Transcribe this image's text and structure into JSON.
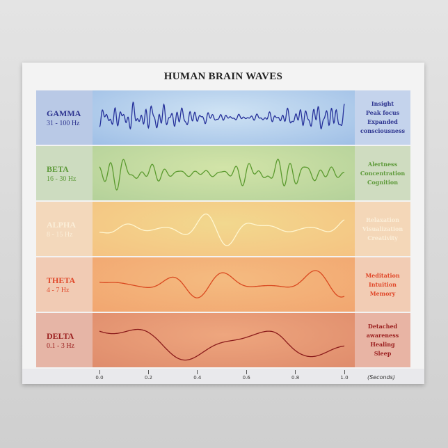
{
  "title": "HUMAN BRAIN WAVES",
  "bands": [
    {
      "name": "GAMMA",
      "range": "31 - 100 Hz",
      "desc": [
        "Insight",
        "Peak focus",
        "Expanded",
        "consciousness"
      ],
      "text_color": "#2e3590",
      "wave_color": "#25309a",
      "label_bg": "#b9c9e6",
      "plot_bg": "#9fbfe6",
      "plot_bg2": "#cfe3f4",
      "desc_bg": "#c4d3ec"
    },
    {
      "name": "BETA",
      "range": "16 - 30 Hz",
      "desc": [
        "Alertness",
        "Concentration",
        "Cognition"
      ],
      "text_color": "#5e9a3a",
      "wave_color": "#5a9a2e",
      "label_bg": "#cddcc0",
      "plot_bg": "#b4d19a",
      "plot_bg2": "#d2e4a8",
      "desc_bg": "#cfdcc0"
    },
    {
      "name": "ALPHA",
      "range": "8 - 15 Hz",
      "desc": [
        "Relaxation",
        "Visualization",
        "Creativity"
      ],
      "text_color": "#fbeed8",
      "wave_color": "#fff6d0",
      "label_bg": "#f3d8bb",
      "plot_bg": "#f5c382",
      "plot_bg2": "#f2d88e",
      "desc_bg": "#f4d7b8"
    },
    {
      "name": "THETA",
      "range": "4 - 7 Hz",
      "desc": [
        "Meditation",
        "Intuition",
        "Memory"
      ],
      "text_color": "#e0482a",
      "wave_color": "#d9481f",
      "label_bg": "#f1cbb4",
      "plot_bg": "#f2a670",
      "plot_bg2": "#f4bb80",
      "desc_bg": "#f2ccb4"
    },
    {
      "name": "DELTA",
      "range": "0.1 - 3 Hz",
      "desc": [
        "Detached",
        "awareness",
        "Healing",
        "Sleep"
      ],
      "text_color": "#9a1e1e",
      "wave_color": "#8a1a1a",
      "label_bg": "#e6b5a6",
      "plot_bg": "#df8c6c",
      "plot_bg2": "#eea67e",
      "desc_bg": "#e8b4a4"
    }
  ],
  "axis": {
    "ticks": [
      "0.0",
      "0.2",
      "0.4",
      "0.6",
      "0.8",
      "1.0"
    ],
    "unit": "(Seconds)",
    "range": [
      0,
      1
    ]
  }
}
